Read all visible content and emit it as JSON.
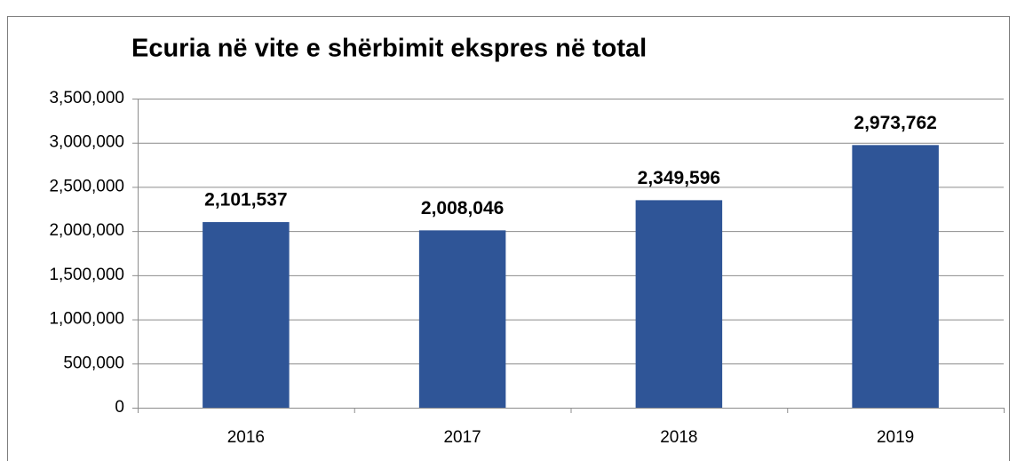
{
  "chart_data": {
    "type": "bar",
    "title": "Ecuria në vite e shërbimit ekspres në total",
    "categories": [
      "2016",
      "2017",
      "2018",
      "2019"
    ],
    "values": [
      2101537,
      2008046,
      2349596,
      2973762
    ],
    "value_labels": [
      "2,101,537",
      "2,008,046",
      "2,349,596",
      "2,973,762"
    ],
    "color": "#2f5597",
    "ylim": [
      0,
      3500000
    ],
    "yticks": [
      0,
      {
        "value": 500000,
        "label": "500,000"
      },
      {
        "value": 1000000,
        "label": "1,000,000"
      },
      {
        "value": 1500000,
        "label": "1,500,000"
      },
      {
        "value": 2000000,
        "label": "2,000,000"
      },
      {
        "value": 2500000,
        "label": "2,500,000"
      },
      {
        "value": 3000000,
        "label": "3,000,000"
      },
      {
        "value": 3500000,
        "label": "3,500,000"
      }
    ],
    "grid": true
  }
}
